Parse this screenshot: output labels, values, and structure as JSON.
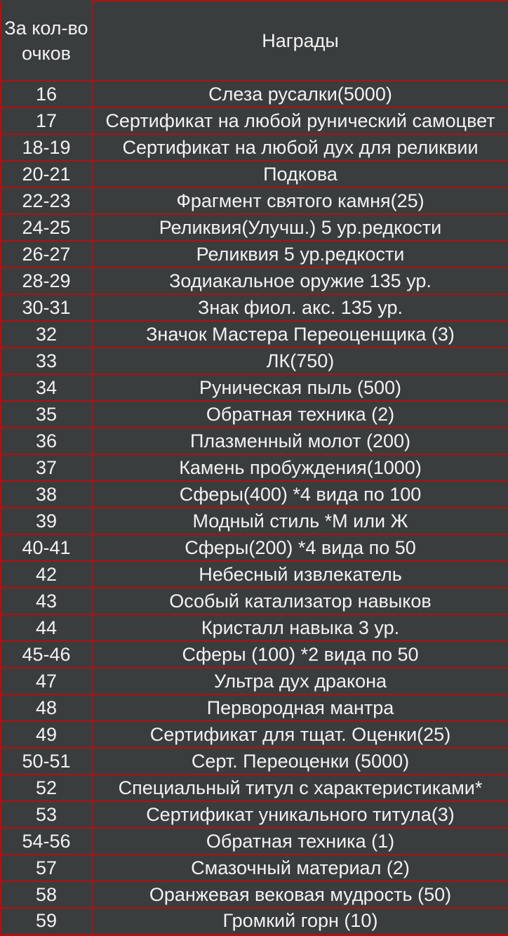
{
  "colors": {
    "background": "#3A3D3E",
    "border": "#B11010",
    "text": "#F2F2F2"
  },
  "table": {
    "header": {
      "points_label_lines": [
        "За кол-во",
        "очков"
      ],
      "rewards_label": "Награды"
    }
  },
  "chart_data": {
    "type": "table",
    "columns": [
      "За кол-во очков",
      "Награды"
    ],
    "rows": [
      {
        "points": "16",
        "reward": "Слеза русалки(5000)"
      },
      {
        "points": "17",
        "reward": "Сертификат на любой рунический самоцвет"
      },
      {
        "points": "18-19",
        "reward": "Сертификат на любой дух для реликвии"
      },
      {
        "points": "20-21",
        "reward": "Подкова"
      },
      {
        "points": "22-23",
        "reward": "Фрагмент святого камня(25)"
      },
      {
        "points": "24-25",
        "reward": "Реликвия(Улучш.) 5 ур.редкости"
      },
      {
        "points": "26-27",
        "reward": "Реликвия 5 ур.редкости"
      },
      {
        "points": "28-29",
        "reward": "Зодиакальное оружие 135 ур."
      },
      {
        "points": "30-31",
        "reward": "Знак фиол. акс. 135 ур."
      },
      {
        "points": "32",
        "reward": "Значок Мастера Переоценщика (3)"
      },
      {
        "points": "33",
        "reward": "ЛК(750)"
      },
      {
        "points": "34",
        "reward": "Руническая пыль (500)"
      },
      {
        "points": "35",
        "reward": "Обратная техника (2)"
      },
      {
        "points": "36",
        "reward": "Плазменный молот (200)"
      },
      {
        "points": "37",
        "reward": "Камень пробуждения(1000)"
      },
      {
        "points": "38",
        "reward": "Сферы(400) *4 вида по 100"
      },
      {
        "points": "39",
        "reward": "Модный стиль *М или Ж"
      },
      {
        "points": "40-41",
        "reward": "Сферы(200) *4 вида по 50"
      },
      {
        "points": "42",
        "reward": "Небесный извлекатель"
      },
      {
        "points": "43",
        "reward": "Особый катализатор навыков"
      },
      {
        "points": "44",
        "reward": "Кристалл навыка 3 ур."
      },
      {
        "points": "45-46",
        "reward": "Сферы (100) *2 вида по 50"
      },
      {
        "points": "47",
        "reward": "Ультра дух дракона"
      },
      {
        "points": "48",
        "reward": "Первородная мантра"
      },
      {
        "points": "49",
        "reward": "Сертификат для тщат. Оценки(25)"
      },
      {
        "points": "50-51",
        "reward": "Серт. Переоценки (5000)"
      },
      {
        "points": "52",
        "reward": "Специальный титул с характеристиками*"
      },
      {
        "points": "53",
        "reward": "Сертификат уникального титула(3)"
      },
      {
        "points": "54-56",
        "reward": "Обратная техника (1)"
      },
      {
        "points": "57",
        "reward": "Смазочный материал (2)"
      },
      {
        "points": "58",
        "reward": "Оранжевая вековая мудрость (50)"
      },
      {
        "points": "59",
        "reward": "Громкий горн (10)"
      }
    ]
  }
}
